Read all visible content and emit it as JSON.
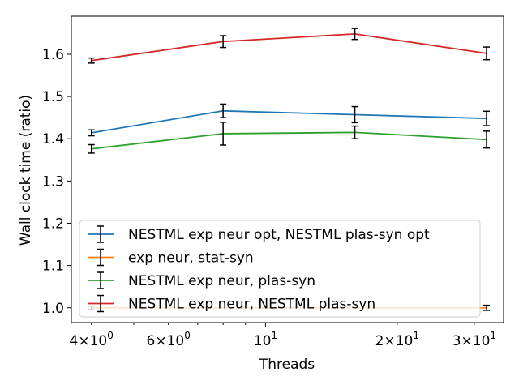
{
  "chart_data": {
    "type": "line",
    "xlabel": "Threads",
    "ylabel": "Wall clock time (ratio)",
    "x_scale": "log",
    "x": [
      4,
      8,
      16,
      32
    ],
    "xlim": [
      3.6,
      35
    ],
    "ylim": [
      0.965,
      1.69
    ],
    "grid": false,
    "legend_position": "lower-left",
    "x_ticks": [
      {
        "value": 4,
        "base": "4",
        "mult": "×",
        "power": "10",
        "exp": "0"
      },
      {
        "value": 6,
        "base": "6",
        "mult": "×",
        "power": "10",
        "exp": "0"
      },
      {
        "value": 10,
        "base": "",
        "mult": "",
        "power": "10",
        "exp": "1"
      },
      {
        "value": 20,
        "base": "2",
        "mult": "×",
        "power": "10",
        "exp": "1"
      },
      {
        "value": 30,
        "base": "3",
        "mult": "×",
        "power": "10",
        "exp": "1"
      }
    ],
    "y_ticks": [
      1.0,
      1.1,
      1.2,
      1.3,
      1.4,
      1.5,
      1.6
    ],
    "y_tick_labels": [
      "1.0",
      "1.1",
      "1.2",
      "1.3",
      "1.4",
      "1.5",
      "1.6"
    ],
    "series": [
      {
        "name": "NESTML exp neur opt, NESTML plas-syn opt",
        "color": "#1f77b4",
        "values": [
          1.414,
          1.466,
          1.457,
          1.448
        ],
        "errors": [
          0.007,
          0.016,
          0.019,
          0.017
        ]
      },
      {
        "name": "exp neur, stat-syn",
        "color": "#ff7f0e",
        "values": [
          1.0,
          1.0,
          1.0,
          1.0
        ],
        "errors": [
          0.004,
          0.0,
          0.0,
          0.006
        ]
      },
      {
        "name": "NESTML exp neur, plas-syn",
        "color": "#2ca02c",
        "values": [
          1.376,
          1.412,
          1.415,
          1.398
        ],
        "errors": [
          0.01,
          0.027,
          0.015,
          0.02
        ]
      },
      {
        "name": "NESTML exp neur, NESTML plas-syn",
        "color": "#d62728",
        "values": [
          1.585,
          1.63,
          1.648,
          1.602
        ],
        "errors": [
          0.006,
          0.014,
          0.013,
          0.015
        ]
      }
    ]
  }
}
